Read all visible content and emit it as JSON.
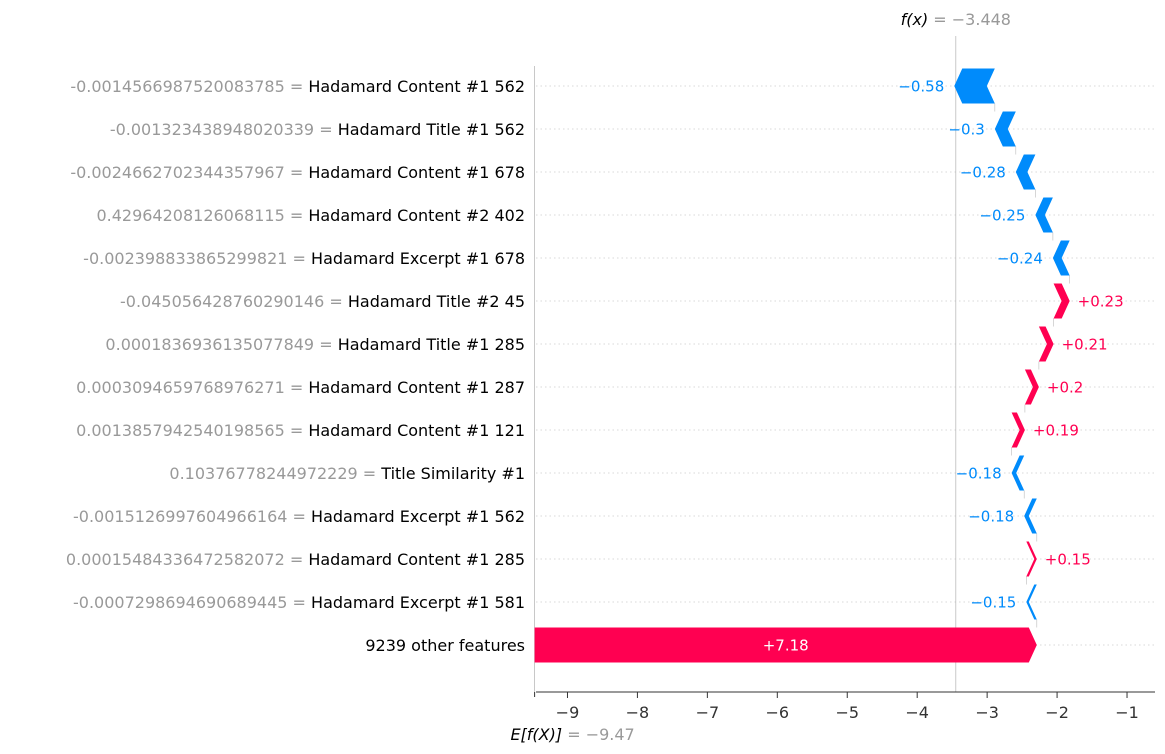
{
  "chart_data": {
    "type": "waterfall",
    "fx": {
      "label": "f(x)",
      "value_text": "= −3.448",
      "value": -3.448
    },
    "efx": {
      "label": "E[f(X)]",
      "value_text": "= −9.47",
      "value": -9.47
    },
    "xlim": [
      -9.45,
      -0.6
    ],
    "xticks": [
      -9,
      -8,
      -7,
      -6,
      -5,
      -4,
      -3,
      -2,
      -1
    ],
    "xtick_labels": [
      "−9",
      "−8",
      "−7",
      "−6",
      "−5",
      "−4",
      "−3",
      "−2",
      "−1"
    ],
    "colors": {
      "positive": "#ff0051",
      "negative": "#008bfb",
      "gray": "#999999"
    },
    "rows": [
      {
        "feature_value": "-0.0014566987520083785",
        "feature": "Hadamard Content #1 562",
        "value": -0.58,
        "label": "−0.58"
      },
      {
        "feature_value": "-0.001323438948020339",
        "feature": "Hadamard Title #1 562",
        "value": -0.3,
        "label": "−0.3"
      },
      {
        "feature_value": "-0.0024662702344357967",
        "feature": "Hadamard Content #1 678",
        "value": -0.28,
        "label": "−0.28"
      },
      {
        "feature_value": "0.42964208126068115",
        "feature": "Hadamard Content #2 402",
        "value": -0.25,
        "label": "−0.25"
      },
      {
        "feature_value": "-0.002398833865299821",
        "feature": "Hadamard Excerpt #1 678",
        "value": -0.24,
        "label": "−0.24"
      },
      {
        "feature_value": "-0.045056428760290146",
        "feature": "Hadamard Title #2 45",
        "value": 0.23,
        "label": "+0.23"
      },
      {
        "feature_value": "0.0001836936135077849",
        "feature": "Hadamard Title #1 285",
        "value": 0.21,
        "label": "+0.21"
      },
      {
        "feature_value": "0.0003094659768976271",
        "feature": "Hadamard Content #1 287",
        "value": 0.2,
        "label": "+0.2"
      },
      {
        "feature_value": "0.0013857942540198565",
        "feature": "Hadamard Content #1 121",
        "value": 0.19,
        "label": "+0.19"
      },
      {
        "feature_value": "0.10376778244972229",
        "feature": "Title Similarity #1",
        "value": -0.18,
        "label": "−0.18"
      },
      {
        "feature_value": "-0.0015126997604966164",
        "feature": "Hadamard Excerpt #1 562",
        "value": -0.18,
        "label": "−0.18"
      },
      {
        "feature_value": "0.00015484336472582072",
        "feature": "Hadamard Content #1 285",
        "value": 0.15,
        "label": "+0.15"
      },
      {
        "feature_value": "-0.0007298694690689445",
        "feature": "Hadamard Excerpt #1 581",
        "value": -0.15,
        "label": "−0.15"
      },
      {
        "feature_value": "",
        "feature": "9239 other features",
        "value": 7.18,
        "label": "+7.18"
      }
    ]
  }
}
